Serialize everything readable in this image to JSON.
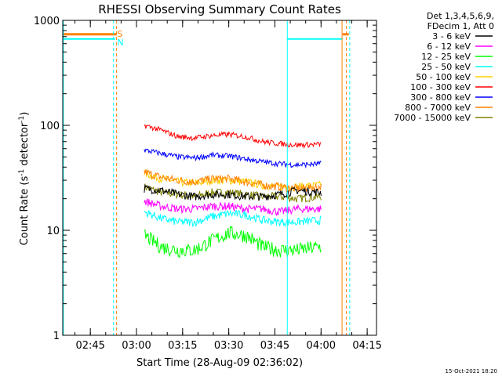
{
  "chart_data": {
    "type": "line",
    "title": "RHESSI Observing Summary Count Rates",
    "xlabel": "Start Time (28-Aug-09 02:36:02)",
    "ylabel_main": "Count Rate (s",
    "ylabel_sup1": "-1",
    "ylabel_mid": " detector",
    "ylabel_sup2": "-1",
    "ylabel_end": ")",
    "yscale": "log",
    "ylim": [
      1,
      1000
    ],
    "xlim_minutes_since_start": [
      0,
      102
    ],
    "x_ticks": [
      {
        "label": "02:45",
        "minute": 8.97
      },
      {
        "label": "03:00",
        "minute": 23.97
      },
      {
        "label": "03:15",
        "minute": 38.97
      },
      {
        "label": "03:30",
        "minute": 53.97
      },
      {
        "label": "03:45",
        "minute": 68.97
      },
      {
        "label": "04:00",
        "minute": 83.97
      },
      {
        "label": "04:15",
        "minute": 98.97
      }
    ],
    "y_ticks": [
      {
        "label": "1",
        "value": 1
      },
      {
        "label": "10",
        "value": 10
      },
      {
        "label": "100",
        "value": 100
      },
      {
        "label": "1000",
        "value": 1000
      }
    ],
    "legend": {
      "header": [
        "Det 1,3,4,5,6,9,",
        "FDecim 1, Att 0"
      ],
      "position": "right"
    },
    "markers": {
      "saa_label": "S",
      "night_label": "N",
      "level": 700
    },
    "series": [
      {
        "name": "3 - 6 keV",
        "color": "#000000",
        "values": [
          25,
          24,
          22,
          21,
          22,
          22,
          21,
          21,
          22,
          24,
          23
        ]
      },
      {
        "name": "6 - 12 keV",
        "color": "#ff00ff",
        "values": [
          19,
          17,
          16,
          16,
          17,
          17,
          16,
          16,
          15,
          16,
          16
        ]
      },
      {
        "name": "12 - 25 keV",
        "color": "#00ff00",
        "values": [
          9,
          7,
          6.5,
          6.5,
          8,
          9.5,
          9,
          7,
          6.5,
          6.5,
          7
        ]
      },
      {
        "name": "25 - 50 keV",
        "color": "#00ffff",
        "values": [
          15,
          13,
          12,
          12,
          13.5,
          14.5,
          14,
          12.5,
          12,
          12,
          12.5
        ]
      },
      {
        "name": "50 - 100 keV",
        "color": "#ffd000",
        "values": [
          35,
          31,
          29,
          28,
          30,
          30,
          29,
          27,
          26,
          26,
          27
        ]
      },
      {
        "name": "100 - 300 keV",
        "color": "#ff0000",
        "values": [
          100,
          90,
          78,
          76,
          80,
          82,
          78,
          70,
          67,
          65,
          66
        ]
      },
      {
        "name": "300 - 800 keV",
        "color": "#0000ff",
        "values": [
          58,
          54,
          50,
          49,
          52,
          51,
          48,
          45,
          43,
          42,
          43
        ]
      },
      {
        "name": "800 - 7000 keV",
        "color": "#ff8000",
        "values": [
          36,
          32,
          30,
          29,
          31,
          31,
          29,
          27,
          26,
          25,
          26
        ]
      },
      {
        "name": "7000 - 15000 keV",
        "color": "#808000",
        "values": [
          26,
          23,
          22,
          21,
          23,
          23,
          22,
          21,
          21,
          20,
          21
        ]
      }
    ],
    "series_x_minutes": [
      26.5,
      32,
      37.5,
      43,
      48.5,
      54,
      59.5,
      65,
      70.5,
      76,
      84
    ]
  },
  "footer": {
    "timestamp": "15-Oct-2021 18:20"
  }
}
